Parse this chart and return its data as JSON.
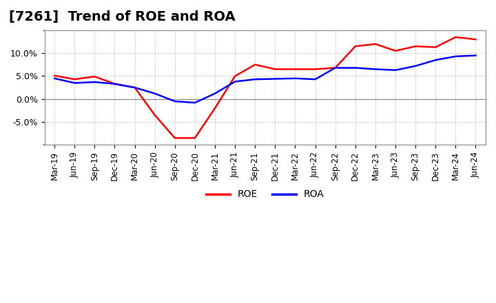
{
  "title": "[7261]  Trend of ROE and ROA",
  "x_labels": [
    "Mar-19",
    "Jun-19",
    "Sep-19",
    "Dec-19",
    "Mar-20",
    "Jun-20",
    "Sep-20",
    "Dec-20",
    "Mar-21",
    "Jun-21",
    "Sep-21",
    "Dec-21",
    "Mar-22",
    "Jun-22",
    "Sep-22",
    "Dec-22",
    "Mar-23",
    "Jun-23",
    "Sep-23",
    "Dec-23",
    "Mar-24",
    "Jun-24"
  ],
  "roe": [
    5.1,
    4.3,
    4.9,
    3.3,
    2.5,
    -3.5,
    -8.5,
    -8.5,
    -2.0,
    5.0,
    7.5,
    6.5,
    6.5,
    6.5,
    6.8,
    11.5,
    12.0,
    10.5,
    11.5,
    11.3,
    13.5,
    13.0
  ],
  "roa": [
    4.5,
    3.5,
    3.7,
    3.3,
    2.5,
    1.2,
    -0.5,
    -0.8,
    1.2,
    3.8,
    4.3,
    4.4,
    4.5,
    4.3,
    6.8,
    6.8,
    6.5,
    6.3,
    7.2,
    8.5,
    9.3,
    9.5
  ],
  "roe_color": "#ff0000",
  "roa_color": "#0000ff",
  "background_color": "#ffffff",
  "plot_bg_color": "#ffffff",
  "grid_color": "#aaaaaa",
  "ylim": [
    -10,
    15
  ],
  "yticks": [
    -5,
    0,
    5,
    10
  ],
  "line_width": 1.8,
  "legend_loc": "lower center",
  "title_fontsize": 14,
  "tick_fontsize": 8.5,
  "ytick_fontsize": 9
}
